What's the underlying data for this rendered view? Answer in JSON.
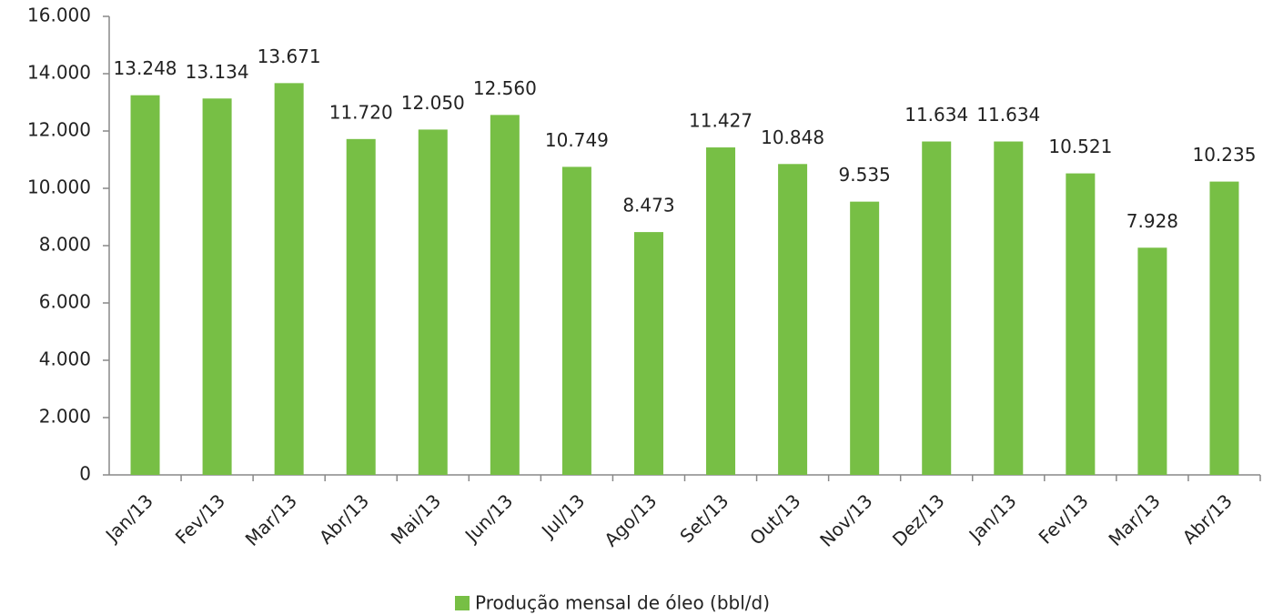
{
  "chart_data": {
    "type": "bar",
    "categories": [
      "Jan/13",
      "Fev/13",
      "Mar/13",
      "Abr/13",
      "Mai/13",
      "Jun/13",
      "Jul/13",
      "Ago/13",
      "Set/13",
      "Out/13",
      "Nov/13",
      "Dez/13",
      "Jan/13",
      "Fev/13",
      "Mar/13",
      "Abr/13"
    ],
    "series": [
      {
        "name": "Produção mensal de óleo (bbl/d)",
        "color": "#77bf45",
        "values": [
          13248,
          13134,
          13671,
          11720,
          12050,
          12560,
          10749,
          8473,
          11427,
          10848,
          9535,
          11634,
          11634,
          10521,
          7928,
          10235
        ],
        "value_labels": [
          "13.248",
          "13.134",
          "13.671",
          "11.720",
          "12.050",
          "12.560",
          "10.749",
          "8.473",
          "11.427",
          "10.848",
          "9.535",
          "11.634",
          "11.634",
          "10.521",
          "7.928",
          "10.235"
        ]
      }
    ],
    "ylim": [
      0,
      16000
    ],
    "yticks": [
      0,
      {
        "value": 2000,
        "label": "2.000"
      },
      {
        "value": 4000,
        "label": "4.000"
      },
      {
        "value": 6000,
        "label": "6.000"
      },
      {
        "value": 8000,
        "label": "8.000"
      },
      {
        "value": 10000,
        "label": "10.000"
      },
      {
        "value": 12000,
        "label": "12.000"
      },
      {
        "value": 14000,
        "label": "14.000"
      },
      {
        "value": 16000,
        "label": "16.000"
      }
    ],
    "grid": false,
    "legend": "bottom"
  }
}
